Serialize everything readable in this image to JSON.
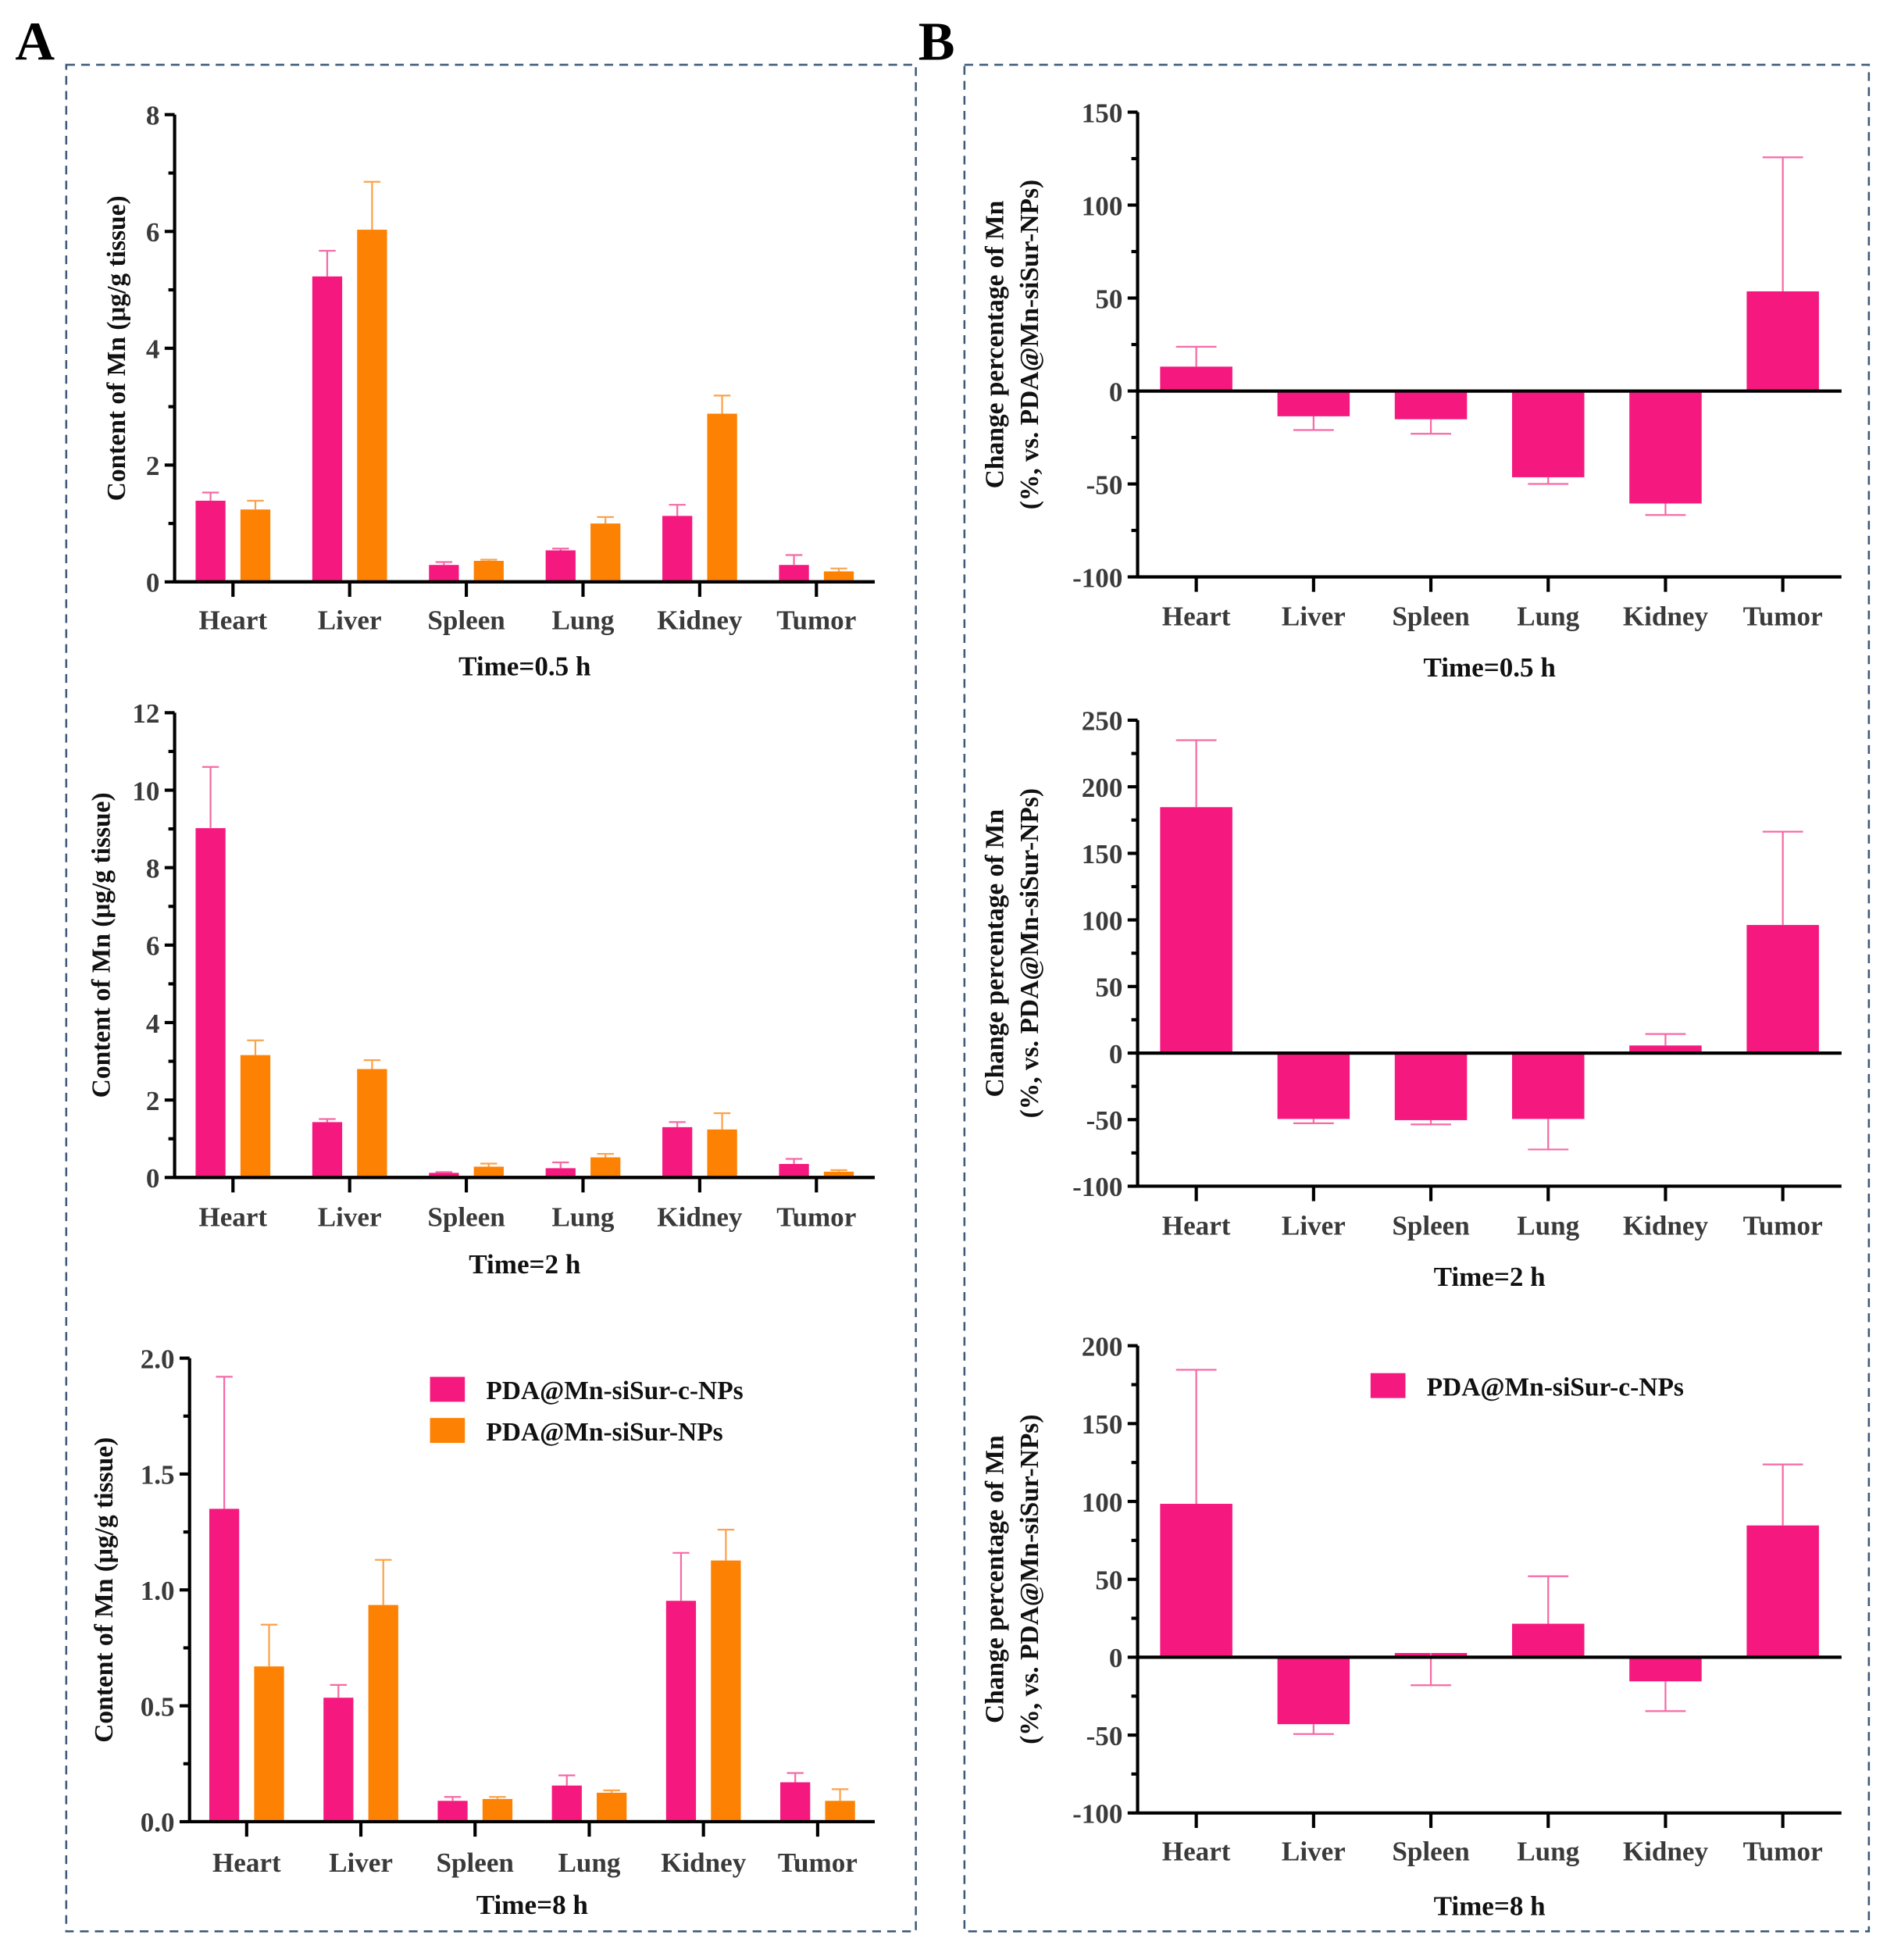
{
  "panels": {
    "A": {
      "letter": "A"
    },
    "B": {
      "letter": "B"
    }
  },
  "colors": {
    "c_nps": "#f5197f",
    "nps": "#fd8204",
    "c_nps_err": "#f56aa6",
    "nps_err": "#fba24a"
  },
  "legend": {
    "c_nps": "PDA@Mn-siSur-c-NPs",
    "nps": "PDA@Mn-siSur-NPs"
  },
  "chart_data": [
    {
      "id": "A1",
      "panel": "A",
      "type": "bar",
      "title": "",
      "xlabel": "Time=0.5 h",
      "ylabel": "Content of Mn (μg/g tissue)",
      "ylim": [
        0,
        8
      ],
      "yticks": [
        0,
        2,
        4,
        6,
        8
      ],
      "yticklabels": [
        "0",
        "2",
        "4",
        "6",
        "8"
      ],
      "minor_per_major": 2,
      "categories": [
        "Heart",
        "Liver",
        "Spleen",
        "Lung",
        "Kidney",
        "Tumor"
      ],
      "series": [
        {
          "name": "PDA@Mn-siSur-c-NPs",
          "key": "c_nps",
          "values": [
            1.39,
            5.23,
            0.29,
            0.54,
            1.13,
            0.29
          ],
          "err_upper": [
            1.53,
            5.67,
            0.34,
            0.57,
            1.32,
            0.46
          ]
        },
        {
          "name": "PDA@Mn-siSur-NPs",
          "key": "nps",
          "values": [
            1.24,
            6.03,
            0.36,
            1.0,
            2.88,
            0.18
          ],
          "err_upper": [
            1.39,
            6.85,
            0.38,
            1.11,
            3.19,
            0.23
          ]
        }
      ],
      "legend": false,
      "grid": false
    },
    {
      "id": "A2",
      "panel": "A",
      "type": "bar",
      "xlabel": "Time=2 h",
      "ylabel": "Content of Mn (μg/g tissue)",
      "ylim": [
        0,
        12
      ],
      "yticks": [
        0,
        2,
        4,
        6,
        8,
        10,
        12
      ],
      "yticklabels": [
        "0",
        "2",
        "4",
        "6",
        "8",
        "10",
        "12"
      ],
      "minor_per_major": 2,
      "categories": [
        "Heart",
        "Liver",
        "Spleen",
        "Lung",
        "Kidney",
        "Tumor"
      ],
      "series": [
        {
          "name": "PDA@Mn-siSur-c-NPs",
          "key": "c_nps",
          "values": [
            9.02,
            1.43,
            0.12,
            0.24,
            1.3,
            0.35
          ],
          "err_upper": [
            10.6,
            1.51,
            0.14,
            0.39,
            1.43,
            0.48
          ]
        },
        {
          "name": "PDA@Mn-siSur-NPs",
          "key": "nps",
          "values": [
            3.16,
            2.8,
            0.28,
            0.52,
            1.24,
            0.15
          ],
          "err_upper": [
            3.54,
            3.03,
            0.36,
            0.61,
            1.66,
            0.19
          ]
        }
      ],
      "legend": false,
      "grid": false
    },
    {
      "id": "A3",
      "panel": "A",
      "type": "bar",
      "xlabel": "Time=8 h",
      "ylabel": "Content of Mn (μg/g tissue)",
      "ylim": [
        0,
        2.0
      ],
      "yticks": [
        0,
        0.5,
        1.0,
        1.5,
        2.0
      ],
      "yticklabels": [
        "0.0",
        "0.5",
        "1.0",
        "1.5",
        "2.0"
      ],
      "minor_per_major": 2,
      "categories": [
        "Heart",
        "Liver",
        "Spleen",
        "Lung",
        "Kidney",
        "Tumor"
      ],
      "series": [
        {
          "name": "PDA@Mn-siSur-c-NPs",
          "key": "c_nps",
          "values": [
            1.35,
            0.535,
            0.09,
            0.156,
            0.953,
            0.17
          ],
          "err_upper": [
            1.92,
            0.59,
            0.107,
            0.2,
            1.16,
            0.21
          ]
        },
        {
          "name": "PDA@Mn-siSur-NPs",
          "key": "nps",
          "values": [
            0.67,
            0.935,
            0.098,
            0.125,
            1.127,
            0.09
          ],
          "err_upper": [
            0.85,
            1.13,
            0.107,
            0.135,
            1.26,
            0.14
          ]
        }
      ],
      "legend": true,
      "legend_position": "top-right",
      "grid": false
    },
    {
      "id": "B1",
      "panel": "B",
      "type": "bar",
      "xlabel": "Time=0.5 h",
      "ylabel": [
        "Change percentage of Mn",
        "(%, vs. PDA@Mn-siSur-NPs)"
      ],
      "ylim": [
        -100,
        150
      ],
      "yticks": [
        -100,
        -50,
        0,
        50,
        100,
        150
      ],
      "yticklabels": [
        "-100",
        "-50",
        "0",
        "50",
        "100",
        "150"
      ],
      "minor_per_major": 2,
      "categories": [
        "Heart",
        "Liver",
        "Spleen",
        "Lung",
        "Kidney",
        "Tumor"
      ],
      "series": [
        {
          "name": "PDA@Mn-siSur-c-NPs",
          "key": "c_nps",
          "values": [
            13.1,
            -13.6,
            -15.2,
            -46.4,
            -60.5,
            53.6
          ],
          "err_end": [
            23.8,
            -21.0,
            -23.0,
            -50.0,
            -66.7,
            125.7
          ]
        }
      ],
      "legend": false,
      "grid": false
    },
    {
      "id": "B2",
      "panel": "B",
      "type": "bar",
      "xlabel": "Time=2 h",
      "ylabel": [
        "Change percentage of Mn",
        "(%, vs. PDA@Mn-siSur-NPs)"
      ],
      "ylim": [
        -100,
        250
      ],
      "yticks": [
        -100,
        -50,
        0,
        50,
        100,
        150,
        200,
        250
      ],
      "yticklabels": [
        "-100",
        "-50",
        "0",
        "50",
        "100",
        "150",
        "200",
        "250"
      ],
      "minor_per_major": 2,
      "categories": [
        "Heart",
        "Liver",
        "Spleen",
        "Lung",
        "Kidney",
        "Tumor"
      ],
      "series": [
        {
          "name": "PDA@Mn-siSur-c-NPs",
          "key": "c_nps",
          "values": [
            184.7,
            -49.5,
            -50.4,
            -49.5,
            5.7,
            96.2
          ],
          "err_end": [
            235.0,
            -52.7,
            -53.6,
            -72.4,
            14.3,
            166.3
          ]
        }
      ],
      "legend": false,
      "grid": false
    },
    {
      "id": "B3",
      "panel": "B",
      "type": "bar",
      "xlabel": "Time=8 h",
      "ylabel": [
        "Change percentage of Mn",
        "(%, vs. PDA@Mn-siSur-NPs)"
      ],
      "ylim": [
        -100,
        200
      ],
      "yticks": [
        -100,
        -50,
        0,
        50,
        100,
        150,
        200
      ],
      "yticklabels": [
        "-100",
        "-50",
        "0",
        "50",
        "100",
        "150",
        "200"
      ],
      "minor_per_major": 2,
      "categories": [
        "Heart",
        "Liver",
        "Spleen",
        "Lung",
        "Kidney",
        "Tumor"
      ],
      "series": [
        {
          "name": "PDA@Mn-siSur-c-NPs",
          "key": "c_nps",
          "values": [
            98.5,
            -43.0,
            2.7,
            21.5,
            -15.5,
            84.6
          ],
          "err_end": [
            184.5,
            -49.3,
            -18.0,
            52.0,
            -34.6,
            123.8
          ]
        }
      ],
      "legend": true,
      "legend_position": "top-right",
      "grid": false
    }
  ]
}
